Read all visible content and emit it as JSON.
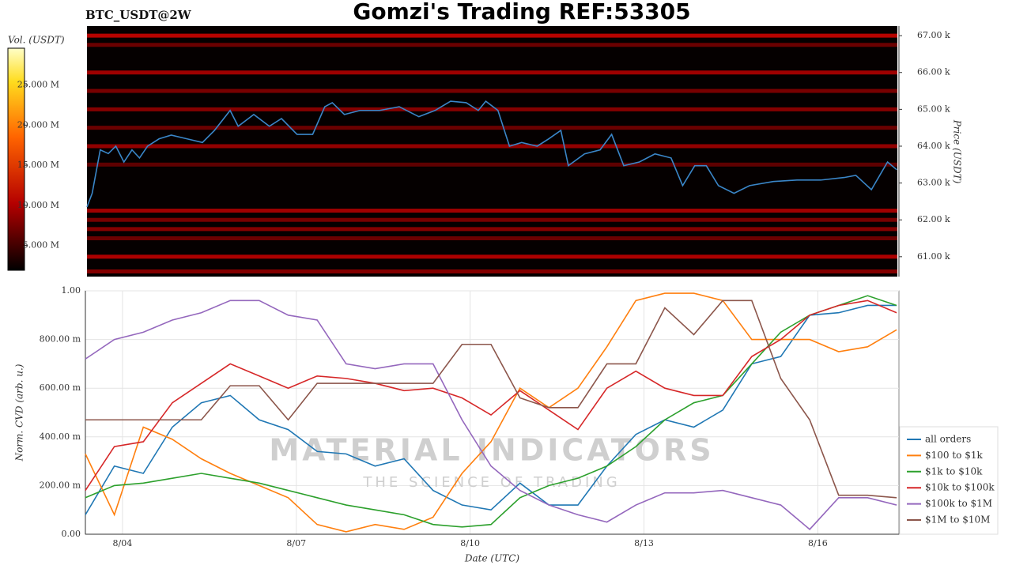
{
  "header": {
    "symbol": "BTC_USDT@2W",
    "title": "Gomzi's Trading REF:53305"
  },
  "chart_data": [
    {
      "type": "heatmap",
      "colorbar_label": "Vol. (USDT)",
      "y_label": "Price (USDT)",
      "xlim": [
        3.36,
        17.4
      ],
      "ylim": [
        60460,
        67260
      ],
      "yticks": [
        {
          "value": 61000,
          "label": "61.00 k"
        },
        {
          "value": 62000,
          "label": "62.00 k"
        },
        {
          "value": 63000,
          "label": "63.00 k"
        },
        {
          "value": 64000,
          "label": "64.00 k"
        },
        {
          "value": 65000,
          "label": "65.00 k"
        },
        {
          "value": 66000,
          "label": "66.00 k"
        },
        {
          "value": 67000,
          "label": "67.00 k"
        }
      ],
      "clim": [
        1900000,
        29600000
      ],
      "cticks": [
        {
          "value": 5000000,
          "label": "5.000 M"
        },
        {
          "value": 10000000,
          "label": "10.000 M"
        },
        {
          "value": 15000000,
          "label": "15.000 M"
        },
        {
          "value": 20000000,
          "label": "20.000 M"
        },
        {
          "value": 25000000,
          "label": "25.000 M"
        }
      ],
      "levels": [
        67000,
        66750,
        66000,
        65500,
        65000,
        64500,
        64000,
        63500,
        62250,
        62000,
        61750,
        61500,
        61000,
        60600
      ],
      "volumes": [
        9000000,
        6000000,
        8000000,
        6500000,
        7000000,
        6000000,
        7500000,
        5500000,
        8000000,
        6500000,
        7000000,
        6000000,
        8500000,
        7000000
      ],
      "price": {
        "color": "#3a86c8",
        "x": [
          3.36,
          3.45,
          3.59,
          3.73,
          3.86,
          4.0,
          4.14,
          4.27,
          4.41,
          4.61,
          4.82,
          5.09,
          5.36,
          5.57,
          5.84,
          5.98,
          6.25,
          6.52,
          6.73,
          7.0,
          7.27,
          7.48,
          7.61,
          7.82,
          8.09,
          8.43,
          8.77,
          9.11,
          9.39,
          9.66,
          9.93,
          10.14,
          10.27,
          10.48,
          10.68,
          10.89,
          11.16,
          11.36,
          11.57,
          11.7,
          11.98,
          12.25,
          12.45,
          12.66,
          12.93,
          13.2,
          13.48,
          13.68,
          13.89,
          14.09,
          14.3,
          14.57,
          14.84,
          15.25,
          15.66,
          16.07,
          16.48,
          16.68,
          16.95,
          17.23,
          17.39
        ],
        "values": [
          62350,
          62720,
          63900,
          63800,
          64000,
          63570,
          63900,
          63680,
          64000,
          64200,
          64300,
          64200,
          64100,
          64430,
          64970,
          64540,
          64860,
          64540,
          64750,
          64320,
          64320,
          65070,
          65180,
          64860,
          64970,
          64970,
          65070,
          64800,
          64970,
          65220,
          65180,
          64970,
          65220,
          64970,
          64000,
          64100,
          64000,
          64200,
          64430,
          63470,
          63790,
          63900,
          64320,
          63470,
          63570,
          63790,
          63680,
          62930,
          63470,
          63470,
          62930,
          62720,
          62930,
          63040,
          63080,
          63080,
          63150,
          63210,
          62820,
          63570,
          63360
        ]
      }
    },
    {
      "type": "line",
      "x_label": "Date (UTC)",
      "y_label": "Norm. CVD (arb. u.)",
      "grid": true,
      "legend": "right",
      "watermark": [
        "MATERIAL INDICATORS",
        "THE SCIENCE OF TRADING"
      ],
      "xlim": [
        3.36,
        17.4
      ],
      "ylim": [
        0,
        1
      ],
      "xticks": [
        {
          "value": 4,
          "label": "8/04"
        },
        {
          "value": 7,
          "label": "8/07"
        },
        {
          "value": 10,
          "label": "8/10"
        },
        {
          "value": 13,
          "label": "8/13"
        },
        {
          "value": 16,
          "label": "8/16"
        }
      ],
      "yticks": [
        {
          "value": 0,
          "label": "0.00"
        },
        {
          "value": 0.2,
          "label": "200.00 m"
        },
        {
          "value": 0.4,
          "label": "400.00 m"
        },
        {
          "value": 0.6,
          "label": "600.00 m"
        },
        {
          "value": 0.8,
          "label": "800.00 m"
        },
        {
          "value": 1,
          "label": "1.00"
        }
      ],
      "x": [
        3.36,
        3.86,
        4.36,
        4.86,
        5.36,
        5.86,
        6.36,
        6.86,
        7.36,
        7.86,
        8.36,
        8.86,
        9.36,
        9.86,
        10.36,
        10.86,
        11.36,
        11.86,
        12.36,
        12.86,
        13.36,
        13.86,
        14.36,
        14.86,
        15.36,
        15.86,
        16.36,
        16.86,
        17.36
      ],
      "series": [
        {
          "name": "all orders",
          "color": "#1f77b4",
          "values": [
            0.08,
            0.28,
            0.25,
            0.44,
            0.54,
            0.57,
            0.47,
            0.43,
            0.34,
            0.33,
            0.28,
            0.31,
            0.18,
            0.12,
            0.1,
            0.21,
            0.12,
            0.12,
            0.28,
            0.41,
            0.47,
            0.44,
            0.51,
            0.7,
            0.73,
            0.9,
            0.91,
            0.94,
            0.94
          ]
        },
        {
          "name": "$100 to $1k",
          "color": "#ff7f0e",
          "values": [
            0.33,
            0.08,
            0.44,
            0.39,
            0.31,
            0.25,
            0.2,
            0.15,
            0.04,
            0.01,
            0.04,
            0.02,
            0.07,
            0.25,
            0.38,
            0.6,
            0.52,
            0.6,
            0.77,
            0.96,
            0.99,
            0.99,
            0.96,
            0.8,
            0.8,
            0.8,
            0.75,
            0.77,
            0.84
          ]
        },
        {
          "name": "$1k to $10k",
          "color": "#2ca02c",
          "values": [
            0.15,
            0.2,
            0.21,
            0.23,
            0.25,
            0.23,
            0.21,
            0.18,
            0.15,
            0.12,
            0.1,
            0.08,
            0.04,
            0.03,
            0.04,
            0.15,
            0.2,
            0.23,
            0.28,
            0.36,
            0.47,
            0.54,
            0.57,
            0.7,
            0.83,
            0.9,
            0.94,
            0.98,
            0.94
          ]
        },
        {
          "name": "$10k to $100k",
          "color": "#d62728",
          "values": [
            0.18,
            0.36,
            0.38,
            0.54,
            0.62,
            0.7,
            0.65,
            0.6,
            0.65,
            0.64,
            0.62,
            0.59,
            0.6,
            0.56,
            0.49,
            0.59,
            0.51,
            0.43,
            0.6,
            0.67,
            0.6,
            0.57,
            0.57,
            0.73,
            0.8,
            0.9,
            0.94,
            0.96,
            0.91
          ]
        },
        {
          "name": "$100k to $1M",
          "color": "#9467bd",
          "values": [
            0.72,
            0.8,
            0.83,
            0.88,
            0.91,
            0.96,
            0.96,
            0.9,
            0.88,
            0.7,
            0.68,
            0.7,
            0.7,
            0.47,
            0.28,
            0.18,
            0.12,
            0.08,
            0.05,
            0.12,
            0.17,
            0.17,
            0.18,
            0.15,
            0.12,
            0.02,
            0.15,
            0.15,
            0.12
          ]
        },
        {
          "name": "$1M to $10M",
          "color": "#8c564b",
          "values": [
            0.47,
            0.47,
            0.47,
            0.47,
            0.47,
            0.61,
            0.61,
            0.47,
            0.62,
            0.62,
            0.62,
            0.62,
            0.62,
            0.78,
            0.78,
            0.56,
            0.52,
            0.52,
            0.7,
            0.7,
            0.93,
            0.82,
            0.96,
            0.96,
            0.64,
            0.47,
            0.16,
            0.16,
            0.15
          ]
        }
      ]
    }
  ]
}
